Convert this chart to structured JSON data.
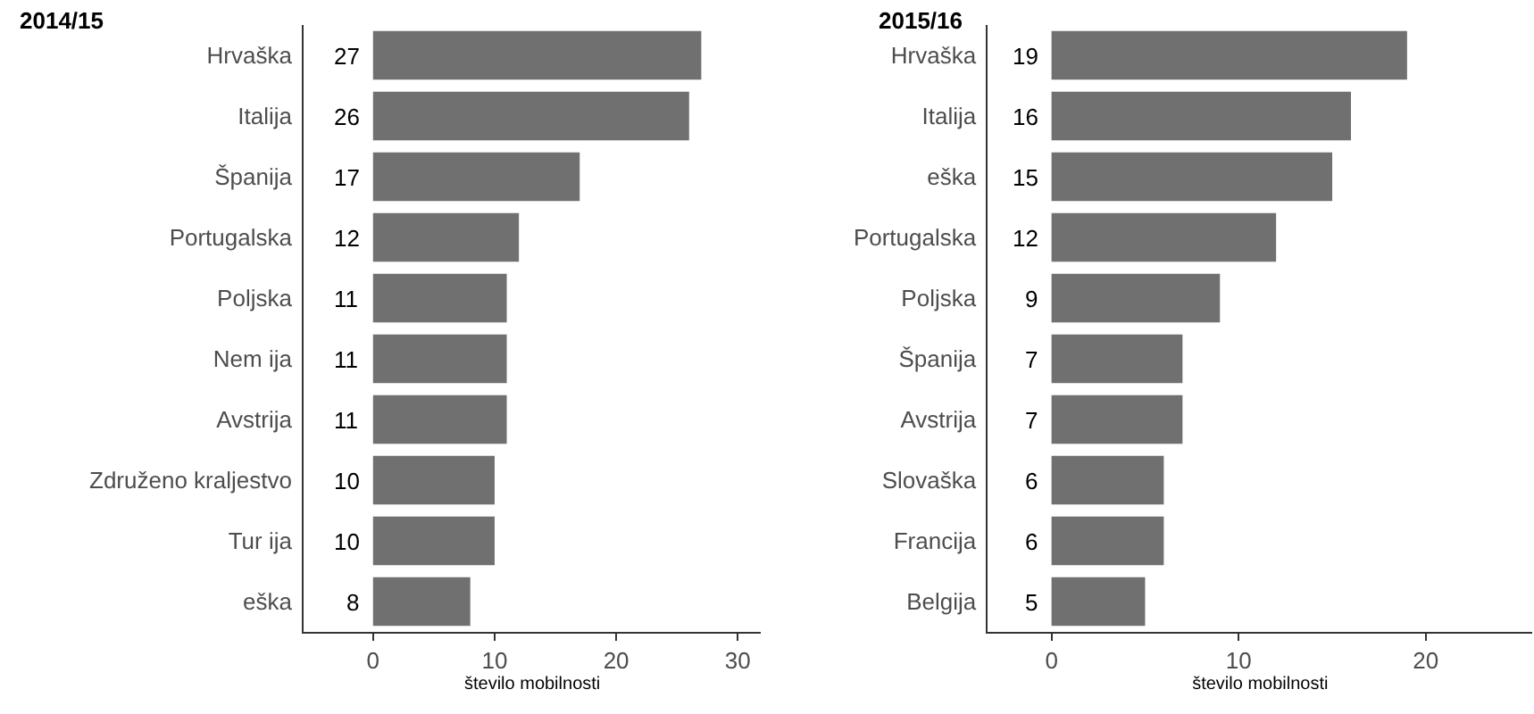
{
  "chart_data": [
    {
      "type": "bar",
      "orientation": "horizontal",
      "title": "2014/15",
      "xlabel": "število mobilnosti",
      "categories": [
        "Hrvaška",
        "Italija",
        "Španija",
        "Portugalska",
        "Poljska",
        "Nem ija",
        "Avstrija",
        "Združeno kraljestvo",
        "Tur ija",
        "eška"
      ],
      "values": [
        27,
        26,
        17,
        12,
        11,
        11,
        11,
        10,
        10,
        8
      ],
      "color": "#707070",
      "xlim": [
        -5.7,
        31.9
      ],
      "xticks": [
        0,
        10,
        20,
        30
      ],
      "data_labels": true
    },
    {
      "type": "bar",
      "orientation": "horizontal",
      "title": "2015/16",
      "xlabel": "število mobilnosti",
      "categories": [
        "Hrvaška",
        "Italija",
        "eška",
        "Portugalska",
        "Poljska",
        "Španija",
        "Avstrija",
        "Slovaška",
        "Francija",
        "Belgija"
      ],
      "values": [
        19,
        16,
        15,
        12,
        9,
        7,
        7,
        6,
        6,
        5
      ],
      "color": "#707070",
      "xlim": [
        -3.4,
        25.7
      ],
      "xticks": [
        0,
        10,
        20
      ],
      "data_labels": true
    }
  ]
}
